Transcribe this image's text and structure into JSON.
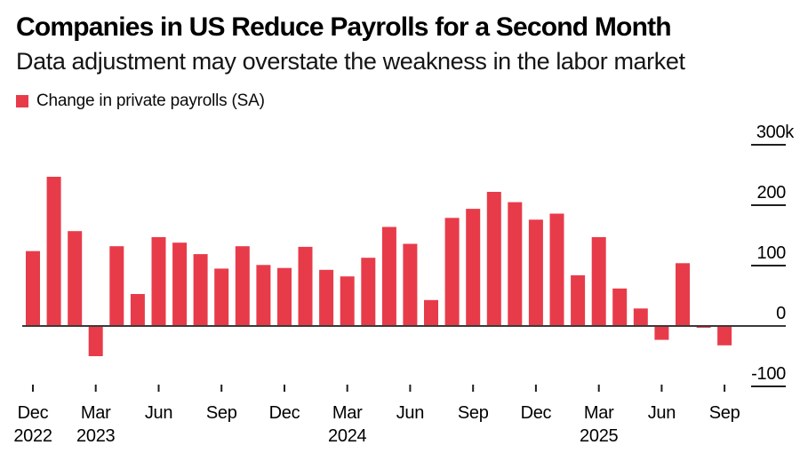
{
  "header": {
    "title": "Companies in US Reduce Payrolls for a Second Month",
    "subtitle": "Data adjustment may overstate the weakness in the labor market"
  },
  "legend": {
    "label": "Change in private payrolls (SA)",
    "swatch_color": "#e83b4a"
  },
  "colors": {
    "bar": "#e83b4a",
    "zero_line": "#3a3a3a",
    "tick_line": "#1f1f1f",
    "axis_text": "#000000"
  },
  "chart_data": {
    "type": "bar",
    "title": "Companies in US Reduce Payrolls for a Second Month",
    "subtitle": "Data adjustment may overstate the weakness in the labor market",
    "legend_entries": [
      "Change in private payrolls (SA)"
    ],
    "legend_position": "top-left",
    "unit": "thousands of jobs, seasonally adjusted",
    "grid": false,
    "bar_color": "#e83b4a",
    "categories": [
      "Dec 2022",
      "Jan 2023",
      "Feb 2023",
      "Mar 2023",
      "Apr 2023",
      "May 2023",
      "Jun 2023",
      "Jul 2023",
      "Aug 2023",
      "Sep 2023",
      "Oct 2023",
      "Nov 2023",
      "Dec 2023",
      "Jan 2024",
      "Feb 2024",
      "Mar 2024",
      "Apr 2024",
      "May 2024",
      "Jun 2024",
      "Jul 2024",
      "Aug 2024",
      "Sep 2024",
      "Oct 2024",
      "Nov 2024",
      "Dec 2024",
      "Jan 2025",
      "Feb 2025",
      "Mar 2025",
      "Apr 2025",
      "May 2025",
      "Jun 2025",
      "Jul 2025",
      "Aug 2025",
      "Sep 2025"
    ],
    "values": [
      124,
      247,
      157,
      -50,
      132,
      53,
      147,
      138,
      119,
      95,
      132,
      101,
      96,
      131,
      93,
      82,
      113,
      164,
      136,
      43,
      179,
      194,
      222,
      205,
      176,
      186,
      84,
      147,
      62,
      29,
      -23,
      104,
      -3,
      -32
    ],
    "ylim": [
      -150,
      320
    ],
    "y_axis": {
      "side": "right",
      "tick_values": [
        300,
        200,
        100,
        0,
        -100
      ],
      "tick_labels": [
        "300k",
        "200",
        "100",
        "0",
        "-100"
      ]
    },
    "x_axis": {
      "ticks": [
        {
          "index": 0,
          "month": "Dec",
          "year": "2022"
        },
        {
          "index": 3,
          "month": "Mar",
          "year": "2023"
        },
        {
          "index": 6,
          "month": "Jun",
          "year": ""
        },
        {
          "index": 9,
          "month": "Sep",
          "year": ""
        },
        {
          "index": 12,
          "month": "Dec",
          "year": ""
        },
        {
          "index": 15,
          "month": "Mar",
          "year": "2024"
        },
        {
          "index": 18,
          "month": "Jun",
          "year": ""
        },
        {
          "index": 21,
          "month": "Sep",
          "year": ""
        },
        {
          "index": 24,
          "month": "Dec",
          "year": ""
        },
        {
          "index": 27,
          "month": "Mar",
          "year": "2025"
        },
        {
          "index": 30,
          "month": "Jun",
          "year": ""
        },
        {
          "index": 33,
          "month": "Sep",
          "year": ""
        }
      ]
    }
  }
}
